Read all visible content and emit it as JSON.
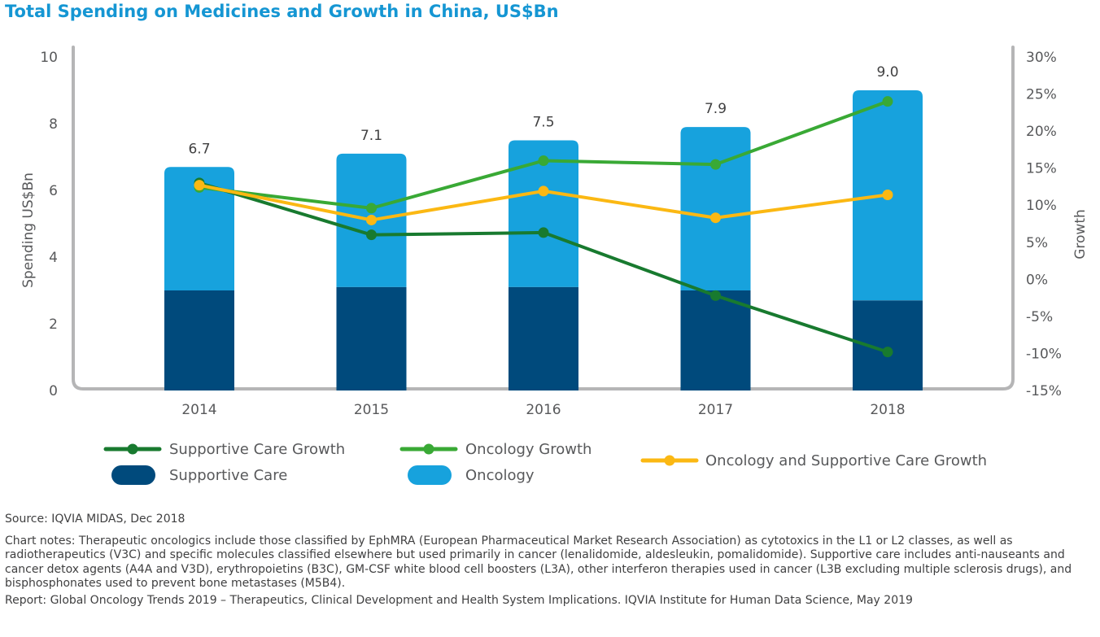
{
  "title": "Total Spending on Medicines and Growth in China, US$Bn",
  "colors": {
    "title": "#1596d3",
    "supportive_care": "#004a7c",
    "oncology": "#17a2dd",
    "supportive_care_growth": "#187a2f",
    "oncology_growth": "#39a935",
    "combined_growth": "#fbb813",
    "frame": "#b5b5b6"
  },
  "chart_data": {
    "type": "bar",
    "stacked": true,
    "categories": [
      "2014",
      "2015",
      "2016",
      "2017",
      "2018"
    ],
    "series": [
      {
        "name": "Supportive Care",
        "axis": "left",
        "values": [
          3.0,
          3.1,
          3.1,
          3.0,
          2.7
        ]
      },
      {
        "name": "Oncology",
        "axis": "left",
        "values": [
          3.7,
          4.0,
          4.4,
          4.9,
          6.3
        ]
      }
    ],
    "totals": [
      6.7,
      7.1,
      7.5,
      7.9,
      9.0
    ],
    "total_labels": [
      "6.7",
      "7.1",
      "7.5",
      "7.9",
      "9.0"
    ],
    "line_series": [
      {
        "name": "Supportive Care Growth",
        "axis": "right",
        "values": [
          13.0,
          6.0,
          6.3,
          -2.2,
          -9.8
        ]
      },
      {
        "name": "Oncology Growth",
        "axis": "right",
        "values": [
          12.4,
          9.6,
          16.0,
          15.5,
          24.0
        ]
      },
      {
        "name": "Oncology and Supportive Care Growth",
        "axis": "right",
        "values": [
          12.7,
          8.0,
          11.9,
          8.3,
          11.4
        ]
      }
    ],
    "ylabel": "Spending US$Bn",
    "ylim": [
      0,
      10
    ],
    "yticks": [
      "0",
      "2",
      "4",
      "6",
      "8",
      "10"
    ],
    "y2label": "Growth",
    "y2lim": [
      -15,
      30
    ],
    "y2ticks": [
      "-15%",
      "-10%",
      "-5%",
      "0%",
      "5%",
      "10%",
      "15%",
      "20%",
      "25%",
      "30%"
    ],
    "legend": {
      "placement": "bottom",
      "items": [
        "Supportive Care Growth",
        "Oncology Growth",
        "Oncology and Supportive Care Growth",
        "Supportive Care",
        "Oncology"
      ]
    },
    "grid": false
  },
  "notes": {
    "source": "Source: IQVIA MIDAS, Dec 2018",
    "chart_notes": "Chart notes: Therapeutic oncologics include those classified by EphMRA (European Pharmaceutical Market Research Association) as cytotoxics in the L1 or L2 classes, as well as radiotherapeutics (V3C) and specific molecules classified elsewhere but used primarily in cancer (lenalidomide, aldesleukin, pomalidomide). Supportive care includes anti-nauseants and cancer detox agents (A4A and V3D), erythropoietins (B3C), GM-CSF white blood cell boosters (L3A), other interferon therapies used in cancer (L3B excluding multiple sclerosis drugs), and bisphosphonates used to prevent bone metastases (M5B4).",
    "report": "Report: Global Oncology Trends 2019 – Therapeutics, Clinical Development and Health System Implications. IQVIA Institute for Human Data Science, May 2019"
  }
}
